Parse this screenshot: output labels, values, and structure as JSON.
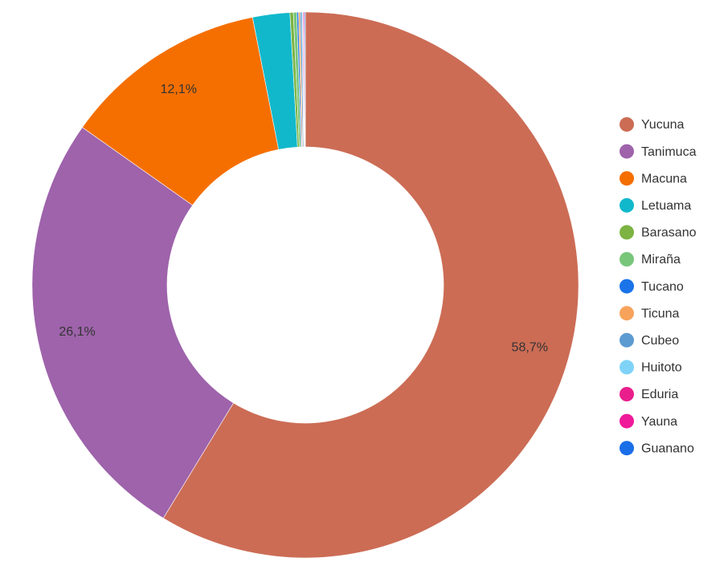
{
  "chart_data": {
    "type": "pie",
    "categories": [
      "Yucuna",
      "Tanimuca",
      "Macuna",
      "Letuama",
      "Barasano",
      "Miraña",
      "Tucano",
      "Ticuna",
      "Cubeo",
      "Huitoto",
      "Eduria",
      "Yauna",
      "Guanano"
    ],
    "values": [
      58.7,
      26.1,
      12.1,
      2.2,
      0.2,
      0.2,
      0.1,
      0.1,
      0.1,
      0.05,
      0.05,
      0.05,
      0.05
    ],
    "value_labels": [
      "58,7%",
      "26,1%",
      "12,1%",
      null,
      null,
      null,
      null,
      null,
      null,
      null,
      null,
      null,
      null
    ],
    "colors": [
      "#cc6c55",
      "#9e63ab",
      "#f56f00",
      "#11b8cc",
      "#7cb342",
      "#78c67a",
      "#1a73e8",
      "#f7a35c",
      "#5c9bd1",
      "#7fd3f7",
      "#e91e8c",
      "#ef1a99",
      "#1a6ee8"
    ],
    "hole": true,
    "legend": "right"
  }
}
